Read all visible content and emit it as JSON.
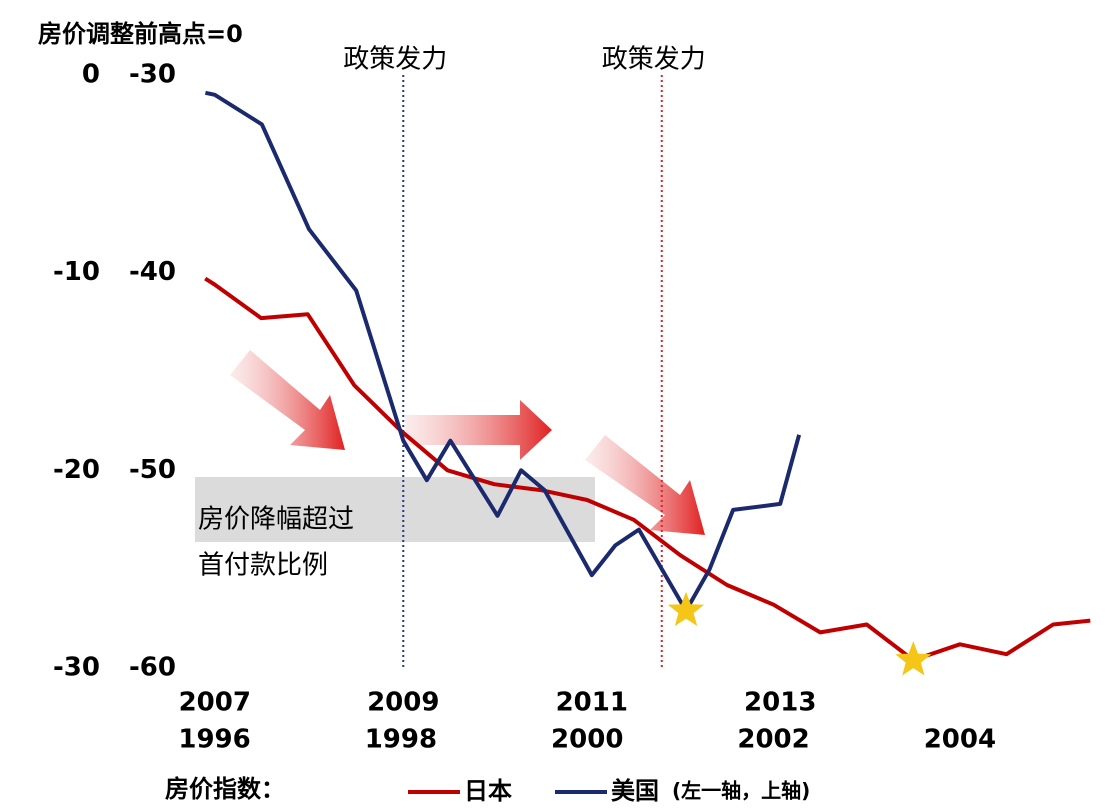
{
  "chart_data": {
    "type": "line",
    "title": "房价调整前高点=0",
    "ylim": [
      -30,
      0
    ],
    "yticks": [
      0,
      -10,
      -20,
      -30
    ],
    "y2lim": [
      -60,
      -30
    ],
    "y2ticks": [
      -30,
      -40,
      -50,
      -60
    ],
    "xlim": [
      1995.79,
      2005.45
    ],
    "xticks": [
      1996,
      1998,
      2000,
      2002,
      2004
    ],
    "x2lim": [
      2006.79,
      2016.34
    ],
    "x2ticks": [
      2007,
      2009,
      2011,
      2013
    ],
    "series": [
      {
        "name": "日本",
        "color": "#c00000",
        "axis": "y",
        "x": [
          1995.9,
          1996.0,
          1996.5,
          1997.0,
          1997.5,
          1998.0,
          1998.5,
          1999.0,
          1999.5,
          2000.0,
          2000.5,
          2001.0,
          2001.5,
          2002.0,
          2002.5,
          2003.0,
          2003.5,
          2004.0,
          2004.5,
          2005.0,
          2005.4
        ],
        "values": [
          -10.3,
          -10.6,
          -12.3,
          -12.1,
          -15.7,
          -18.0,
          -20.0,
          -20.7,
          -21.0,
          -21.5,
          -22.5,
          -24.3,
          -25.8,
          -26.8,
          -28.2,
          -27.8,
          -29.6,
          -28.8,
          -29.3,
          -27.8,
          -27.6
        ]
      },
      {
        "name": "美国",
        "color": "#1a2a6c",
        "axis": "y2",
        "x": [
          2006.9,
          2007.0,
          2007.5,
          2008.0,
          2008.5,
          2009.0,
          2009.25,
          2009.5,
          2010.0,
          2010.25,
          2010.5,
          2011.0,
          2011.25,
          2011.5,
          2012.0,
          2012.25,
          2012.5,
          2013.0,
          2013.2
        ],
        "values": [
          -30.9,
          -31.0,
          -32.5,
          -37.8,
          -40.9,
          -48.5,
          -50.5,
          -48.5,
          -52.3,
          -50.0,
          -51.0,
          -55.3,
          -53.8,
          -53.0,
          -57.1,
          -55.0,
          -52.0,
          -51.7,
          -48.2
        ]
      }
    ],
    "annotations": [
      {
        "text": "政策发力",
        "x": 2009,
        "axis": "x2",
        "color": "#1f3a8a"
      },
      {
        "text": "政策发力",
        "x": 2000.8,
        "axis": "x",
        "color": "#e0202a"
      }
    ],
    "box_lines": [
      "房价降幅超过",
      "首付款比例"
    ],
    "legend": {
      "label": "房价指数：",
      "note": "(左一轴，上轴)"
    }
  }
}
